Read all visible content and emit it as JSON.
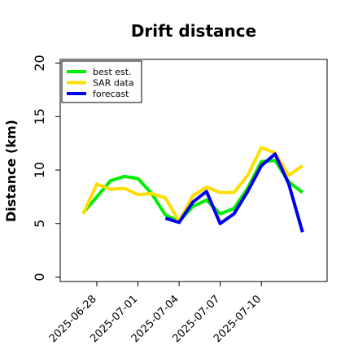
{
  "chart_data": {
    "type": "line",
    "title": "Drift distance",
    "xlabel": "",
    "ylabel": "Distance (km)",
    "ylim": [
      -0.5,
      21
    ],
    "yticks": [
      0,
      5,
      10,
      15,
      20
    ],
    "xticks": [
      "2025-06-28",
      "2025-07-01",
      "2025-07-04",
      "2025-07-07",
      "2025-07-10"
    ],
    "legend_position": "top-left",
    "series": [
      {
        "name": "best est.",
        "color": "#00ee00",
        "points": [
          [
            "2025-06-27",
            6.0
          ],
          [
            "2025-06-28",
            7.5
          ],
          [
            "2025-06-29",
            9.0
          ],
          [
            "2025-06-30",
            9.4
          ],
          [
            "2025-07-01",
            9.2
          ],
          [
            "2025-07-02",
            7.8
          ],
          [
            "2025-07-03",
            5.8
          ],
          [
            "2025-07-04",
            5.2
          ],
          [
            "2025-07-05",
            6.6
          ],
          [
            "2025-07-06",
            7.2
          ],
          [
            "2025-07-07",
            5.9
          ],
          [
            "2025-07-08",
            6.4
          ],
          [
            "2025-07-09",
            8.3
          ],
          [
            "2025-07-10",
            10.8
          ],
          [
            "2025-07-11",
            10.9
          ],
          [
            "2025-07-12",
            8.9
          ],
          [
            "2025-07-13",
            7.9
          ]
        ]
      },
      {
        "name": "SAR data",
        "color": "#ffdd00",
        "points": [
          [
            "2025-06-27",
            5.9
          ],
          [
            "2025-06-28",
            8.7
          ],
          [
            "2025-06-29",
            8.2
          ],
          [
            "2025-06-30",
            8.3
          ],
          [
            "2025-07-01",
            7.7
          ],
          [
            "2025-07-02",
            7.8
          ],
          [
            "2025-07-03",
            7.4
          ],
          [
            "2025-07-04",
            5.2
          ],
          [
            "2025-07-05",
            7.6
          ],
          [
            "2025-07-06",
            8.4
          ],
          [
            "2025-07-07",
            7.9
          ],
          [
            "2025-07-08",
            7.9
          ],
          [
            "2025-07-09",
            9.5
          ],
          [
            "2025-07-10",
            12.1
          ],
          [
            "2025-07-11",
            11.6
          ],
          [
            "2025-07-12",
            9.5
          ],
          [
            "2025-07-13",
            10.4
          ]
        ]
      },
      {
        "name": "forecast",
        "color": "#0000ee",
        "points": [
          [
            "2025-07-03",
            5.5
          ],
          [
            "2025-07-04",
            5.1
          ],
          [
            "2025-07-05",
            7.0
          ],
          [
            "2025-07-06",
            8.0
          ],
          [
            "2025-07-07",
            5.0
          ],
          [
            "2025-07-08",
            5.9
          ],
          [
            "2025-07-09",
            8.0
          ],
          [
            "2025-07-10",
            10.4
          ],
          [
            "2025-07-11",
            11.5
          ],
          [
            "2025-07-12",
            8.7
          ],
          [
            "2025-07-13",
            4.2
          ]
        ]
      }
    ]
  }
}
